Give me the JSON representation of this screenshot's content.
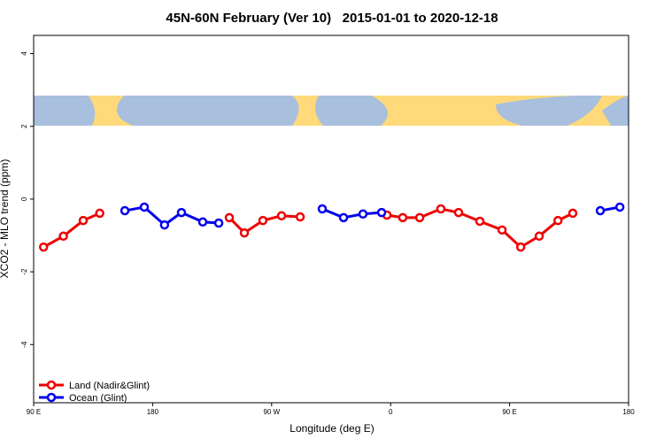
{
  "chart_data": {
    "type": "line",
    "title": "45N-60N February (Ver 10)   2015-01-01 to 2020-12-18",
    "x_label": "Longitude (deg E)",
    "y_label": "XCO2 - MLO trend (ppm)",
    "x": [
      97.5,
      112.5,
      127.5,
      140,
      159,
      173.7,
      189,
      201.8,
      217.9,
      230,
      238,
      249.4,
      263.4,
      277.5,
      291.6,
      308.3,
      324.4,
      339.1,
      353.2,
      357.2,
      369.2,
      382,
      398,
      411.4,
      427.5,
      444.3,
      458.4,
      472.4,
      486.6,
      497.8,
      518.6,
      533.4
    ],
    "series": [
      {
        "name": "Land (Nadir&Glint)",
        "color": "#ee0000",
        "values": [
          -1.32,
          -1.02,
          -0.59,
          -0.39,
          null,
          null,
          null,
          null,
          null,
          null,
          -0.51,
          -0.93,
          -0.59,
          -0.46,
          -0.49,
          null,
          null,
          null,
          null,
          -0.44,
          -0.51,
          -0.51,
          -0.27,
          -0.37,
          -0.61,
          -0.85,
          -1.32,
          -1.02,
          -0.59,
          -0.39,
          null,
          null
        ]
      },
      {
        "name": "Ocean (Glint)",
        "color": "#0000ee",
        "values": [
          null,
          null,
          null,
          null,
          -0.32,
          -0.22,
          -0.71,
          -0.37,
          -0.63,
          -0.66,
          null,
          null,
          null,
          null,
          null,
          -0.27,
          -0.51,
          -0.41,
          -0.37,
          null,
          null,
          null,
          null,
          null,
          null,
          null,
          null,
          null,
          null,
          null,
          -0.32,
          -0.22
        ]
      }
    ],
    "xlim": [
      90,
      540
    ],
    "xticks": [
      {
        "value": 90,
        "label": "90 E"
      },
      180,
      {
        "value": 270,
        "label": "90 W"
      },
      {
        "value": 360,
        "label": "0"
      },
      {
        "value": 450,
        "label": "90 E"
      },
      {
        "value": 540,
        "label": "180"
      }
    ],
    "ylim": [
      -5.6,
      4.5
    ],
    "yticks": [
      -4,
      -2,
      0,
      2,
      4
    ],
    "legend": "bottom-left"
  }
}
